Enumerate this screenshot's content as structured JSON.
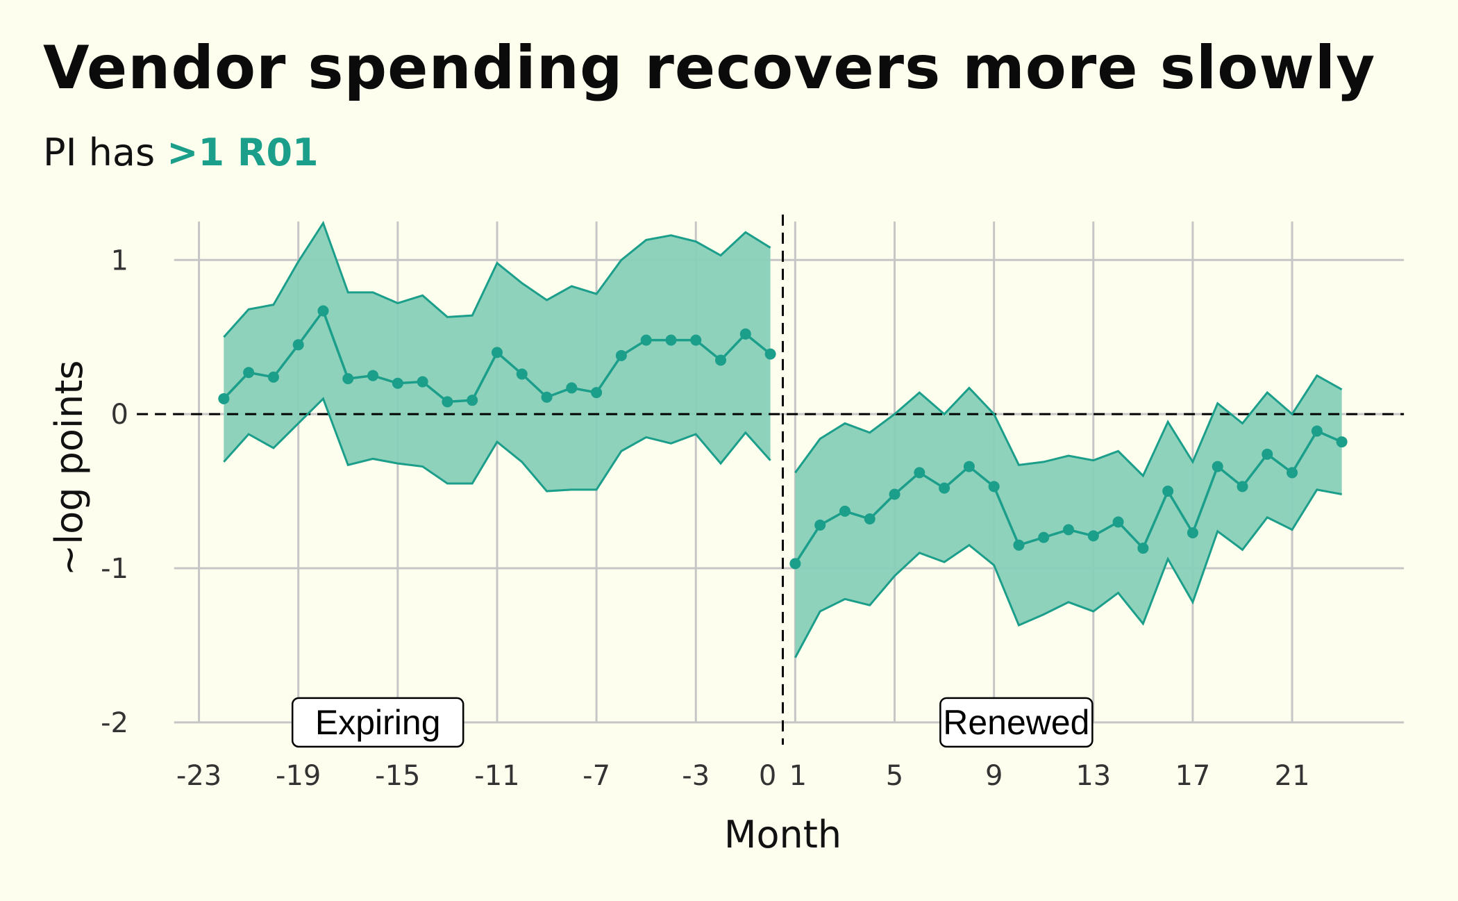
{
  "title": "Vendor spending recovers more slowly",
  "subtitle": {
    "prefix": "PI has ",
    "highlight": ">1 R01"
  },
  "colors": {
    "background": "#fdfeed",
    "accent": "#1b9e8a",
    "band": "#88d0b9",
    "grid": "#c6c6c6"
  },
  "chart_data": {
    "type": "line",
    "xlabel": "Month",
    "ylabel": "~log points",
    "xlim": [
      -25,
      26
    ],
    "ylim": [
      -2.1,
      1.38
    ],
    "x_ticks": [
      -23,
      -19,
      -15,
      -11,
      -7,
      -3,
      0,
      1,
      5,
      9,
      13,
      17,
      21
    ],
    "y_ticks": [
      -2,
      -1,
      0,
      1
    ],
    "grid": true,
    "reference_lines": {
      "horizontal": 0,
      "vertical": 0.5
    },
    "panels": [
      {
        "name": "Expiring",
        "x": [
          -22,
          -21,
          -20,
          -19,
          -18,
          -17,
          -16,
          -15,
          -14,
          -13,
          -12,
          -11,
          -10,
          -9,
          -8,
          -7,
          -6,
          -5,
          -4,
          -3,
          -2,
          -1,
          0
        ],
        "estimate": [
          0.1,
          0.27,
          0.24,
          0.45,
          0.67,
          0.23,
          0.25,
          0.2,
          0.21,
          0.08,
          0.09,
          0.4,
          0.26,
          0.11,
          0.17,
          0.14,
          0.38,
          0.48,
          0.48,
          0.48,
          0.35,
          0.52,
          0.39
        ],
        "upper": [
          0.5,
          0.68,
          0.71,
          0.99,
          1.24,
          0.79,
          0.79,
          0.72,
          0.77,
          0.63,
          0.64,
          0.98,
          0.85,
          0.74,
          0.83,
          0.78,
          1.0,
          1.13,
          1.16,
          1.12,
          1.03,
          1.18,
          1.08
        ],
        "lower": [
          -0.31,
          -0.13,
          -0.22,
          -0.06,
          0.1,
          -0.33,
          -0.29,
          -0.32,
          -0.34,
          -0.45,
          -0.45,
          -0.18,
          -0.31,
          -0.5,
          -0.49,
          -0.49,
          -0.24,
          -0.15,
          -0.19,
          -0.13,
          -0.32,
          -0.12,
          -0.3
        ]
      },
      {
        "name": "Renewed",
        "x": [
          1,
          2,
          3,
          4,
          5,
          6,
          7,
          8,
          9,
          10,
          11,
          12,
          13,
          14,
          15,
          16,
          17,
          18,
          19,
          20,
          21,
          22,
          23
        ],
        "estimate": [
          -0.97,
          -0.72,
          -0.63,
          -0.68,
          -0.52,
          -0.38,
          -0.48,
          -0.34,
          -0.47,
          -0.85,
          -0.8,
          -0.75,
          -0.79,
          -0.7,
          -0.87,
          -0.5,
          -0.77,
          -0.34,
          -0.47,
          -0.26,
          -0.38,
          -0.11,
          -0.18
        ],
        "upper": [
          -0.38,
          -0.16,
          -0.06,
          -0.12,
          0.0,
          0.14,
          0.0,
          0.17,
          0.0,
          -0.33,
          -0.31,
          -0.27,
          -0.3,
          -0.24,
          -0.4,
          -0.05,
          -0.31,
          0.07,
          -0.06,
          0.14,
          0.0,
          0.25,
          0.16
        ],
        "lower": [
          -1.58,
          -1.28,
          -1.2,
          -1.24,
          -1.05,
          -0.9,
          -0.96,
          -0.85,
          -0.98,
          -1.37,
          -1.3,
          -1.22,
          -1.28,
          -1.16,
          -1.36,
          -0.94,
          -1.22,
          -0.76,
          -0.88,
          -0.67,
          -0.75,
          -0.49,
          -0.52
        ]
      }
    ]
  }
}
